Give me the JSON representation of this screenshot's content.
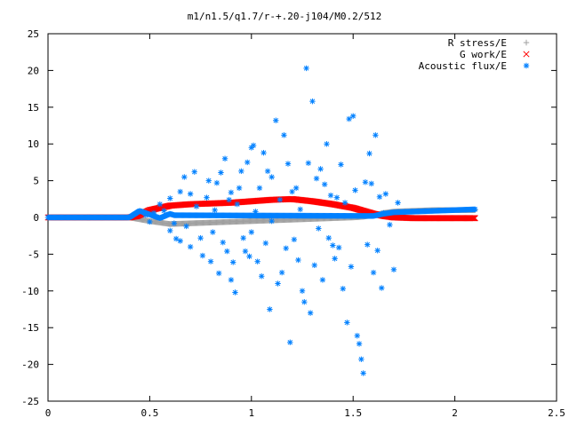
{
  "chart_data": {
    "type": "scatter",
    "title": "m1/n1.5/q1.7/r-+.20-j104/M0.2/512",
    "xlabel": "",
    "ylabel": "",
    "xlim": [
      0,
      2.5
    ],
    "ylim": [
      -25,
      25
    ],
    "x_ticks": [
      0,
      0.5,
      1,
      1.5,
      2,
      2.5
    ],
    "x_tick_labels": [
      "0",
      "0.5",
      "1",
      "1.5",
      "2",
      "2.5"
    ],
    "y_ticks": [
      -25,
      -20,
      -15,
      -10,
      -5,
      0,
      5,
      10,
      15,
      20,
      25
    ],
    "y_tick_labels": [
      "-25",
      "-20",
      "-15",
      "-10",
      "-5",
      "0",
      "5",
      "10",
      "15",
      "20",
      "25"
    ],
    "grid": false,
    "legend_position": "top-right",
    "series": [
      {
        "name": "R stress/E",
        "marker": "+",
        "color": "#a0a0a0",
        "curve": {
          "x": [
            0.0,
            0.4,
            0.44,
            0.5,
            0.6,
            0.7,
            0.8,
            0.9,
            1.0,
            1.1,
            1.2,
            1.3,
            1.4,
            1.5,
            1.55,
            1.6,
            1.65,
            1.7,
            1.8,
            1.9,
            2.0,
            2.1
          ],
          "y": [
            0.0,
            0.0,
            -0.2,
            -0.5,
            -0.9,
            -0.8,
            -0.7,
            -0.6,
            -0.5,
            -0.4,
            -0.3,
            -0.2,
            -0.1,
            0.0,
            0.1,
            0.3,
            0.6,
            0.8,
            0.9,
            1.0,
            1.0,
            1.0
          ]
        }
      },
      {
        "name": "G work/E",
        "marker": "x",
        "color": "#ff0000",
        "curve": {
          "x": [
            0.0,
            0.4,
            0.44,
            0.5,
            0.6,
            0.7,
            0.8,
            0.9,
            1.0,
            1.1,
            1.2,
            1.3,
            1.4,
            1.5,
            1.55,
            1.6,
            1.65,
            1.7,
            1.8,
            1.9,
            2.0,
            2.1
          ],
          "y": [
            0.0,
            0.0,
            0.2,
            1.0,
            1.6,
            1.8,
            1.9,
            2.0,
            2.2,
            2.4,
            2.5,
            2.2,
            1.8,
            1.3,
            0.9,
            0.5,
            0.2,
            0.0,
            -0.1,
            -0.1,
            -0.1,
            -0.1
          ]
        }
      },
      {
        "name": "Acoustic flux/E",
        "marker": "*",
        "color": "#0080ff",
        "curve": {
          "x": [
            0.0,
            0.4,
            0.45,
            0.5,
            0.55,
            0.6,
            0.62,
            1.6,
            1.65,
            1.7,
            1.8,
            1.9,
            2.0,
            2.1
          ],
          "y": [
            0.0,
            0.0,
            0.9,
            0.4,
            -0.1,
            0.5,
            0.3,
            0.2,
            0.5,
            0.7,
            0.8,
            0.9,
            1.0,
            1.1
          ]
        },
        "points": [
          [
            0.46,
            0.8
          ],
          [
            0.48,
            0.3
          ],
          [
            0.5,
            -0.6
          ],
          [
            0.52,
            0.6
          ],
          [
            0.55,
            1.8
          ],
          [
            0.57,
            0.9
          ],
          [
            0.6,
            2.6
          ],
          [
            0.6,
            -1.8
          ],
          [
            0.62,
            -0.8
          ],
          [
            0.63,
            -2.9
          ],
          [
            0.65,
            3.5
          ],
          [
            0.65,
            -3.2
          ],
          [
            0.67,
            5.5
          ],
          [
            0.68,
            -1.2
          ],
          [
            0.7,
            3.2
          ],
          [
            0.7,
            -4.0
          ],
          [
            0.72,
            6.2
          ],
          [
            0.73,
            1.5
          ],
          [
            0.75,
            -2.8
          ],
          [
            0.76,
            -5.2
          ],
          [
            0.78,
            2.7
          ],
          [
            0.79,
            5.0
          ],
          [
            0.8,
            -6.0
          ],
          [
            0.81,
            -2.0
          ],
          [
            0.82,
            1.0
          ],
          [
            0.83,
            4.7
          ],
          [
            0.84,
            -7.6
          ],
          [
            0.85,
            6.1
          ],
          [
            0.86,
            -3.4
          ],
          [
            0.87,
            8.0
          ],
          [
            0.88,
            -4.6
          ],
          [
            0.89,
            2.4
          ],
          [
            0.9,
            3.4
          ],
          [
            0.9,
            -8.5
          ],
          [
            0.91,
            -6.1
          ],
          [
            0.92,
            -10.2
          ],
          [
            0.93,
            1.8
          ],
          [
            0.94,
            4.0
          ],
          [
            0.95,
            6.3
          ],
          [
            0.96,
            -2.8
          ],
          [
            0.97,
            -4.6
          ],
          [
            0.98,
            7.5
          ],
          [
            0.99,
            -5.3
          ],
          [
            1.0,
            9.5
          ],
          [
            1.0,
            -2.0
          ],
          [
            1.01,
            9.8
          ],
          [
            1.02,
            0.8
          ],
          [
            1.03,
            -6.0
          ],
          [
            1.04,
            4.0
          ],
          [
            1.05,
            -8.0
          ],
          [
            1.06,
            8.8
          ],
          [
            1.07,
            -3.5
          ],
          [
            1.08,
            6.3
          ],
          [
            1.09,
            -12.5
          ],
          [
            1.1,
            5.5
          ],
          [
            1.1,
            -0.5
          ],
          [
            1.12,
            13.2
          ],
          [
            1.13,
            -9.0
          ],
          [
            1.14,
            2.4
          ],
          [
            1.15,
            -7.5
          ],
          [
            1.16,
            11.2
          ],
          [
            1.17,
            -4.2
          ],
          [
            1.18,
            7.3
          ],
          [
            1.19,
            -17.0
          ],
          [
            1.2,
            3.5
          ],
          [
            1.21,
            -3.0
          ],
          [
            1.22,
            4.0
          ],
          [
            1.23,
            -5.8
          ],
          [
            1.24,
            1.1
          ],
          [
            1.25,
            -10.0
          ],
          [
            1.26,
            -11.5
          ],
          [
            1.27,
            20.3
          ],
          [
            1.28,
            7.4
          ],
          [
            1.29,
            -13.0
          ],
          [
            1.3,
            15.8
          ],
          [
            1.31,
            -6.5
          ],
          [
            1.32,
            5.3
          ],
          [
            1.33,
            -1.5
          ],
          [
            1.34,
            6.6
          ],
          [
            1.35,
            -8.5
          ],
          [
            1.36,
            4.5
          ],
          [
            1.37,
            10.0
          ],
          [
            1.38,
            -2.8
          ],
          [
            1.39,
            3.0
          ],
          [
            1.4,
            -3.8
          ],
          [
            1.41,
            -5.6
          ],
          [
            1.42,
            2.7
          ],
          [
            1.43,
            -4.1
          ],
          [
            1.44,
            7.2
          ],
          [
            1.45,
            -9.7
          ],
          [
            1.46,
            2.0
          ],
          [
            1.47,
            -14.3
          ],
          [
            1.48,
            13.4
          ],
          [
            1.49,
            -6.7
          ],
          [
            1.5,
            13.8
          ],
          [
            1.51,
            3.7
          ],
          [
            1.52,
            -16.1
          ],
          [
            1.53,
            -17.2
          ],
          [
            1.54,
            -19.3
          ],
          [
            1.55,
            -21.2
          ],
          [
            1.56,
            4.8
          ],
          [
            1.57,
            -3.7
          ],
          [
            1.58,
            8.7
          ],
          [
            1.59,
            4.6
          ],
          [
            1.6,
            -7.5
          ],
          [
            1.61,
            11.2
          ],
          [
            1.62,
            -4.5
          ],
          [
            1.63,
            2.8
          ],
          [
            1.64,
            -9.6
          ],
          [
            1.65,
            0.6
          ],
          [
            1.66,
            3.2
          ],
          [
            1.68,
            -1.0
          ],
          [
            1.7,
            -7.1
          ],
          [
            1.72,
            2.0
          ]
        ]
      }
    ]
  }
}
